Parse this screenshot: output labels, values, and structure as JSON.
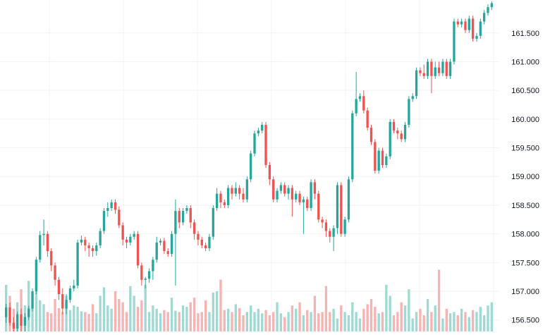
{
  "chart_data": {
    "type": "candlestick",
    "y_axis": {
      "position": "right",
      "ylim": [
        156.3,
        162.05
      ],
      "ticks": [
        156.5,
        157.0,
        157.5,
        158.0,
        158.5,
        159.0,
        159.5,
        160.0,
        160.5,
        161.0,
        161.5
      ],
      "tick_labels": [
        "156.500",
        "157.000",
        "157.500",
        "158.000",
        "158.500",
        "159.000",
        "159.500",
        "160.000",
        "160.500",
        "161.000",
        "161.500"
      ]
    },
    "grid": true,
    "colors": {
      "up": "#26a69a",
      "down": "#ef5350",
      "up_volume": "#9fd9d3",
      "down_volume": "#f6b3b1",
      "grid": "#f0f3fa",
      "axis_text": "#131722"
    },
    "candles": [
      [
        156.55,
        156.72,
        156.78,
        156.45
      ],
      [
        156.72,
        156.45,
        156.8,
        156.4
      ],
      [
        156.45,
        156.35,
        156.55,
        156.25
      ],
      [
        156.35,
        156.6,
        156.65,
        156.3
      ],
      [
        156.6,
        156.4,
        156.7,
        156.3
      ],
      [
        156.4,
        156.55,
        156.62,
        156.3
      ],
      [
        156.55,
        156.7,
        156.75,
        156.5
      ],
      [
        156.7,
        157.0,
        157.05,
        156.65
      ],
      [
        157.0,
        157.55,
        157.6,
        156.95
      ],
      [
        157.55,
        157.98,
        158.05,
        157.5
      ],
      [
        157.98,
        158.0,
        158.25,
        157.8
      ],
      [
        158.0,
        157.7,
        158.05,
        157.6
      ],
      [
        157.7,
        157.45,
        157.75,
        157.35
      ],
      [
        157.45,
        157.2,
        157.5,
        157.1
      ],
      [
        157.2,
        156.95,
        157.25,
        156.85
      ],
      [
        156.95,
        156.7,
        157.05,
        156.6
      ],
      [
        156.7,
        156.85,
        156.95,
        156.6
      ],
      [
        156.85,
        157.05,
        157.1,
        156.8
      ],
      [
        157.05,
        157.1,
        157.2,
        157.0
      ],
      [
        157.1,
        157.85,
        157.9,
        157.05
      ],
      [
        157.85,
        157.9,
        157.97,
        157.8
      ],
      [
        157.9,
        157.8,
        157.95,
        157.7
      ],
      [
        157.8,
        157.75,
        157.85,
        157.6
      ],
      [
        157.75,
        157.7,
        157.8,
        157.6
      ],
      [
        157.7,
        157.8,
        157.85,
        157.62
      ],
      [
        157.8,
        158.05,
        158.1,
        157.75
      ],
      [
        158.05,
        158.4,
        158.45,
        158.0
      ],
      [
        158.4,
        158.45,
        158.55,
        158.3
      ],
      [
        158.45,
        158.55,
        158.6,
        158.4
      ],
      [
        158.55,
        158.42,
        158.6,
        158.35
      ],
      [
        158.42,
        158.15,
        158.48,
        158.1
      ],
      [
        158.15,
        157.9,
        158.2,
        157.8
      ],
      [
        157.9,
        157.85,
        157.95,
        157.75
      ],
      [
        157.85,
        157.95,
        158.0,
        157.8
      ],
      [
        157.95,
        158.0,
        158.05,
        157.9
      ],
      [
        158.0,
        157.45,
        158.05,
        157.4
      ],
      [
        157.45,
        157.2,
        157.5,
        157.1
      ],
      [
        157.2,
        157.22,
        157.25,
        157.05
      ],
      [
        157.22,
        157.35,
        157.4,
        157.15
      ],
      [
        157.35,
        157.55,
        157.6,
        157.2
      ],
      [
        157.55,
        157.85,
        157.95,
        157.5
      ],
      [
        157.85,
        157.88,
        157.92,
        157.8
      ],
      [
        157.88,
        157.7,
        157.93,
        157.65
      ],
      [
        157.7,
        157.65,
        157.75,
        157.6
      ],
      [
        157.65,
        158.0,
        158.05,
        157.6
      ],
      [
        158.0,
        158.4,
        158.6,
        157.1
      ],
      [
        158.4,
        158.2,
        158.45,
        158.1
      ],
      [
        158.2,
        158.4,
        158.45,
        158.15
      ],
      [
        158.4,
        158.45,
        158.5,
        158.35
      ],
      [
        158.45,
        158.2,
        158.5,
        158.1
      ],
      [
        158.2,
        158.0,
        158.25,
        157.9
      ],
      [
        158.0,
        157.9,
        158.05,
        157.8
      ],
      [
        157.9,
        157.8,
        157.95,
        157.75
      ],
      [
        157.8,
        157.75,
        157.85,
        157.7
      ],
      [
        157.75,
        157.95,
        158.0,
        157.7
      ],
      [
        157.95,
        158.45,
        158.5,
        157.9
      ],
      [
        158.45,
        158.7,
        158.8,
        158.4
      ],
      [
        158.7,
        158.55,
        158.75,
        158.45
      ],
      [
        158.55,
        158.5,
        158.6,
        158.45
      ],
      [
        158.5,
        158.8,
        158.85,
        158.45
      ],
      [
        158.8,
        158.7,
        158.85,
        158.6
      ],
      [
        158.7,
        158.8,
        158.9,
        158.65
      ],
      [
        158.8,
        158.7,
        158.85,
        158.6
      ],
      [
        158.7,
        158.6,
        158.8,
        158.55
      ],
      [
        158.6,
        158.95,
        159.0,
        158.55
      ],
      [
        158.95,
        159.4,
        159.45,
        158.9
      ],
      [
        159.4,
        159.75,
        159.8,
        159.35
      ],
      [
        159.75,
        159.8,
        159.85,
        159.7
      ],
      [
        159.8,
        159.9,
        159.95,
        159.75
      ],
      [
        159.9,
        159.2,
        159.95,
        159.15
      ],
      [
        159.2,
        158.95,
        159.25,
        158.85
      ],
      [
        158.95,
        158.6,
        159.0,
        158.55
      ],
      [
        158.6,
        158.75,
        158.8,
        158.55
      ],
      [
        158.75,
        158.85,
        158.9,
        158.7
      ],
      [
        158.85,
        158.7,
        158.9,
        158.65
      ],
      [
        158.7,
        158.8,
        158.85,
        158.6
      ],
      [
        158.8,
        158.6,
        158.85,
        158.3
      ],
      [
        158.6,
        158.7,
        158.75,
        158.55
      ],
      [
        158.7,
        158.55,
        158.75,
        158.5
      ],
      [
        158.55,
        158.6,
        158.65,
        158.0
      ],
      [
        158.6,
        158.45,
        158.65,
        158.4
      ],
      [
        158.45,
        158.9,
        158.95,
        158.4
      ],
      [
        158.9,
        158.7,
        158.95,
        158.6
      ],
      [
        158.7,
        158.25,
        158.75,
        158.2
      ],
      [
        158.25,
        158.2,
        158.3,
        158.1
      ],
      [
        158.2,
        158.05,
        158.25,
        157.95
      ],
      [
        158.05,
        157.95,
        158.1,
        157.85
      ],
      [
        157.95,
        158.1,
        158.15,
        157.7
      ],
      [
        158.1,
        158.85,
        158.9,
        158.0
      ],
      [
        158.85,
        158.0,
        158.9,
        157.95
      ],
      [
        158.0,
        158.25,
        158.3,
        157.95
      ],
      [
        158.25,
        158.95,
        159.0,
        158.2
      ],
      [
        158.95,
        160.1,
        160.15,
        158.9
      ],
      [
        160.1,
        160.35,
        160.82,
        160.05
      ],
      [
        160.35,
        160.4,
        160.45,
        160.3
      ],
      [
        160.4,
        160.15,
        160.5,
        160.1
      ],
      [
        160.15,
        159.85,
        160.2,
        159.8
      ],
      [
        159.85,
        159.6,
        159.9,
        159.55
      ],
      [
        159.6,
        159.1,
        159.65,
        159.05
      ],
      [
        159.1,
        159.45,
        159.5,
        159.05
      ],
      [
        159.45,
        159.2,
        159.5,
        159.15
      ],
      [
        159.2,
        159.35,
        159.4,
        159.15
      ],
      [
        159.35,
        159.95,
        160.0,
        159.3
      ],
      [
        159.95,
        159.8,
        160.0,
        159.75
      ],
      [
        159.8,
        159.75,
        159.85,
        159.65
      ],
      [
        159.75,
        159.65,
        159.8,
        159.6
      ],
      [
        159.65,
        159.9,
        159.95,
        159.6
      ],
      [
        159.9,
        160.35,
        160.4,
        159.85
      ],
      [
        160.35,
        160.4,
        160.45,
        160.3
      ],
      [
        160.4,
        160.85,
        160.9,
        160.35
      ],
      [
        160.85,
        160.8,
        160.9,
        160.75
      ],
      [
        160.8,
        160.75,
        160.95,
        160.7
      ],
      [
        160.75,
        161.0,
        161.05,
        160.7
      ],
      [
        161.0,
        160.75,
        161.05,
        160.45
      ],
      [
        160.75,
        160.9,
        161.0,
        160.7
      ],
      [
        160.9,
        160.8,
        161.0,
        160.75
      ],
      [
        160.8,
        161.0,
        161.05,
        160.75
      ],
      [
        161.0,
        160.75,
        161.05,
        160.7
      ],
      [
        160.75,
        161.0,
        161.05,
        160.7
      ],
      [
        161.0,
        161.7,
        161.75,
        160.95
      ],
      [
        161.7,
        161.65,
        161.75,
        161.6
      ],
      [
        161.65,
        161.7,
        161.75,
        161.6
      ],
      [
        161.7,
        161.55,
        161.75,
        161.5
      ],
      [
        161.55,
        161.75,
        161.8,
        161.5
      ],
      [
        161.75,
        161.4,
        161.8,
        161.35
      ],
      [
        161.4,
        161.45,
        161.5,
        161.35
      ],
      [
        161.45,
        161.7,
        161.75,
        161.4
      ],
      [
        161.7,
        161.85,
        161.9,
        161.65
      ],
      [
        161.85,
        161.95,
        162.0,
        161.8
      ],
      [
        161.95,
        162.02,
        162.05,
        161.9
      ]
    ],
    "volumes": [
      0.72,
      0.55,
      0.35,
      0.45,
      0.65,
      0.4,
      0.78,
      0.58,
      0.62,
      0.48,
      0.42,
      0.3,
      0.28,
      0.5,
      0.36,
      0.3,
      0.55,
      0.33,
      0.4,
      0.38,
      0.31,
      0.3,
      0.27,
      0.42,
      0.28,
      0.55,
      0.68,
      0.4,
      0.35,
      0.62,
      0.5,
      0.45,
      0.3,
      0.7,
      0.55,
      0.38,
      0.48,
      0.72,
      0.3,
      0.4,
      0.35,
      0.28,
      0.33,
      0.3,
      0.52,
      0.32,
      0.3,
      0.4,
      0.38,
      0.45,
      0.52,
      0.28,
      0.3,
      0.48,
      0.3,
      0.6,
      0.62,
      0.8,
      0.33,
      0.35,
      0.3,
      0.42,
      0.36,
      0.25,
      0.3,
      0.4,
      0.3,
      0.35,
      0.28,
      0.33,
      0.25,
      0.3,
      0.45,
      0.28,
      0.22,
      0.3,
      0.4,
      0.35,
      0.45,
      0.25,
      0.33,
      0.3,
      0.55,
      0.28,
      0.3,
      0.7,
      0.3,
      0.35,
      0.2,
      0.4,
      0.3,
      0.25,
      0.45,
      0.3,
      0.2,
      0.35,
      0.42,
      0.5,
      0.38,
      0.28,
      0.3,
      0.72,
      0.55,
      0.25,
      0.3,
      0.45,
      0.4,
      0.65,
      0.2,
      0.3,
      0.35,
      0.25,
      0.5,
      0.3,
      0.4,
      0.95,
      0.2,
      0.35,
      0.28,
      0.3,
      0.25,
      0.35,
      0.3,
      0.22,
      0.33,
      0.3,
      0.38,
      0.25,
      0.4,
      0.45
    ]
  }
}
